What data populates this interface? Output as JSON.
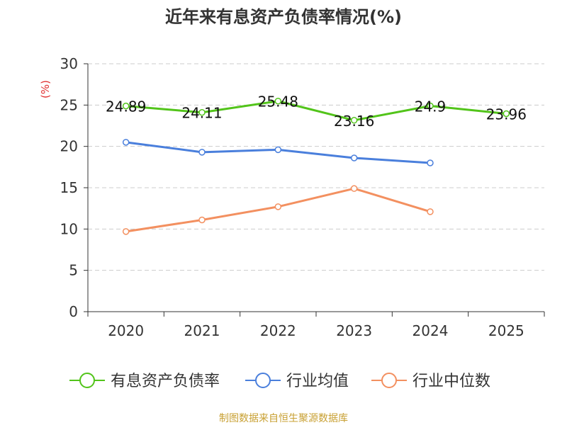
{
  "chart_data": {
    "type": "line",
    "title": "近年来有息资产负债率情况(%)",
    "ylabel": "(%)",
    "xlabel": "",
    "categories": [
      "2020",
      "2021",
      "2022",
      "2023",
      "2024",
      "2025"
    ],
    "yticks": [
      "0",
      "5",
      "10",
      "15",
      "20",
      "25",
      "30"
    ],
    "ylim": [
      0,
      30
    ],
    "grid": true,
    "legend_position": "bottom",
    "series": [
      {
        "name": "有息资产负债率",
        "color": "#52c41a",
        "values": [
          24.89,
          24.11,
          25.48,
          23.16,
          24.9,
          23.96
        ],
        "labels": [
          "24.89",
          "24.11",
          "25.48",
          "23.16",
          "24.9",
          "23.96"
        ]
      },
      {
        "name": "行业均值",
        "color": "#4a7fdc",
        "values": [
          20.5,
          19.3,
          19.6,
          18.6,
          18.0,
          null
        ],
        "labels": []
      },
      {
        "name": "行业中位数",
        "color": "#f39060",
        "values": [
          9.7,
          11.1,
          12.7,
          14.9,
          12.1,
          null
        ],
        "labels": []
      }
    ]
  },
  "source": {
    "text": "制图数据来自恒生聚源数据库",
    "color": "#c8a033"
  },
  "colors": {
    "axis": "#333333",
    "grid": "#cccccc",
    "ylabel": "#e03030"
  }
}
